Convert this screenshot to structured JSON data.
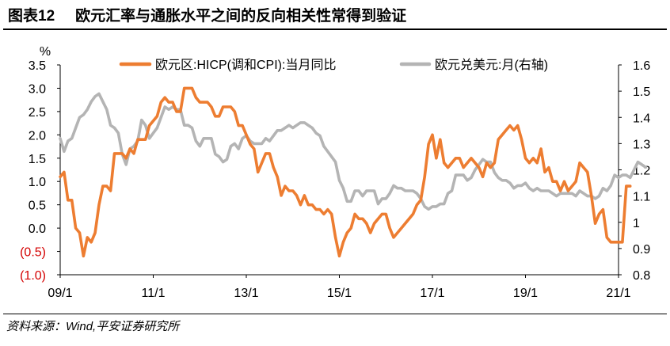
{
  "figure": {
    "number": "图表12",
    "title": "欧元汇率与通胀水平之间的反向相关性常得到验证",
    "source": "资料来源：Wind,平安证券研究所"
  },
  "chart_data": {
    "type": "line",
    "left_unit": "%",
    "x_ticks": [
      "09/1",
      "11/1",
      "13/1",
      "15/1",
      "17/1",
      "19/1",
      "21/1"
    ],
    "y_left": {
      "min": -1.0,
      "max": 3.5,
      "ticks": [
        "3.5",
        "3.0",
        "2.5",
        "2.0",
        "1.5",
        "1.0",
        "0.5",
        "0.0",
        "(0.5)",
        "(1.0)"
      ]
    },
    "y_right": {
      "min": 0.8,
      "max": 1.6,
      "ticks": [
        "1.6",
        "1.5",
        "1.4",
        "1.3",
        "1.2",
        "1.1",
        "1",
        "0.9",
        "0.8"
      ]
    },
    "legend_position": "top",
    "grid": false,
    "series": [
      {
        "name": "欧元区:HICP(调和CPI):当月同比",
        "axis": "left",
        "color": "#ed7d31",
        "x_start": "2009-01",
        "values": [
          1.1,
          1.2,
          0.6,
          0.6,
          0.0,
          -0.1,
          -0.6,
          -0.2,
          -0.3,
          -0.1,
          0.5,
          0.9,
          0.9,
          0.8,
          1.6,
          1.6,
          1.6,
          1.5,
          1.7,
          1.6,
          1.9,
          1.9,
          1.9,
          2.2,
          2.3,
          2.4,
          2.7,
          2.8,
          2.7,
          2.7,
          2.5,
          2.5,
          3.0,
          3.0,
          3.0,
          2.8,
          2.7,
          2.7,
          2.7,
          2.6,
          2.4,
          2.4,
          2.6,
          2.6,
          2.6,
          2.5,
          2.2,
          2.2,
          2.0,
          1.8,
          1.7,
          1.2,
          1.4,
          1.6,
          1.6,
          1.3,
          1.1,
          0.7,
          0.9,
          0.8,
          0.8,
          0.7,
          0.5,
          0.7,
          0.5,
          0.5,
          0.4,
          0.4,
          0.3,
          0.4,
          0.3,
          -0.2,
          -0.6,
          -0.3,
          -0.1,
          0.0,
          0.3,
          0.2,
          0.2,
          0.1,
          -0.1,
          0.1,
          0.2,
          0.3,
          0.3,
          0.0,
          -0.2,
          -0.1,
          0.0,
          0.1,
          0.2,
          0.3,
          0.5,
          0.6,
          1.1,
          1.8,
          2.0,
          1.5,
          1.9,
          1.4,
          1.3,
          1.4,
          1.5,
          1.5,
          1.3,
          1.4,
          1.5,
          1.4,
          1.3,
          1.1,
          1.4,
          1.3,
          1.4,
          1.9,
          2.0,
          2.1,
          2.2,
          2.1,
          2.2,
          1.9,
          1.5,
          1.4,
          1.5,
          1.4,
          1.7,
          1.2,
          1.3,
          1.0,
          1.0,
          0.8,
          1.0,
          0.8,
          0.9,
          1.0,
          1.4,
          1.3,
          1.2,
          0.7,
          0.1,
          0.3,
          0.4,
          -0.2,
          -0.3,
          -0.3,
          -0.3,
          -0.3,
          0.9,
          0.9
        ]
      },
      {
        "name": "欧元兑美元:月(右轴)",
        "axis": "right",
        "color": "#b4b4b4",
        "x_start": "2009-01",
        "values": [
          1.32,
          1.27,
          1.31,
          1.32,
          1.36,
          1.4,
          1.41,
          1.43,
          1.46,
          1.48,
          1.49,
          1.46,
          1.43,
          1.37,
          1.36,
          1.34,
          1.26,
          1.22,
          1.28,
          1.29,
          1.31,
          1.39,
          1.37,
          1.32,
          1.34,
          1.36,
          1.4,
          1.44,
          1.43,
          1.44,
          1.43,
          1.43,
          1.37,
          1.37,
          1.36,
          1.31,
          1.29,
          1.32,
          1.32,
          1.32,
          1.26,
          1.25,
          1.23,
          1.24,
          1.29,
          1.3,
          1.28,
          1.32,
          1.33,
          1.31,
          1.3,
          1.3,
          1.3,
          1.32,
          1.31,
          1.33,
          1.35,
          1.35,
          1.36,
          1.37,
          1.36,
          1.37,
          1.38,
          1.38,
          1.37,
          1.36,
          1.34,
          1.33,
          1.29,
          1.27,
          1.25,
          1.23,
          1.16,
          1.13,
          1.08,
          1.08,
          1.12,
          1.12,
          1.1,
          1.12,
          1.12,
          1.12,
          1.07,
          1.09,
          1.09,
          1.11,
          1.14,
          1.13,
          1.13,
          1.12,
          1.12,
          1.12,
          1.11,
          1.09,
          1.06,
          1.05,
          1.06,
          1.06,
          1.07,
          1.07,
          1.11,
          1.12,
          1.18,
          1.18,
          1.18,
          1.16,
          1.17,
          1.2,
          1.22,
          1.24,
          1.23,
          1.23,
          1.19,
          1.17,
          1.16,
          1.16,
          1.15,
          1.13,
          1.14,
          1.14,
          1.15,
          1.13,
          1.12,
          1.13,
          1.12,
          1.12,
          1.12,
          1.11,
          1.1,
          1.11,
          1.11,
          1.11,
          1.11,
          1.1,
          1.12,
          1.11,
          1.1,
          1.1,
          1.09,
          1.1,
          1.13,
          1.12,
          1.14,
          1.18,
          1.17,
          1.18,
          1.18,
          1.17,
          1.2,
          1.23,
          1.22,
          1.21
        ]
      }
    ]
  }
}
